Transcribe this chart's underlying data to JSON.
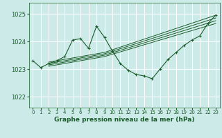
{
  "title": "Graphe pression niveau de la mer (hPa)",
  "bg_color": "#cceae7",
  "grid_color": "#ffffff",
  "line_color": "#1a5c2a",
  "ylabel_ticks": [
    1022,
    1023,
    1024,
    1025
  ],
  "xticks": [
    0,
    1,
    2,
    3,
    4,
    5,
    6,
    7,
    8,
    9,
    10,
    11,
    12,
    13,
    14,
    15,
    16,
    17,
    18,
    19,
    20,
    21,
    22,
    23
  ],
  "ylim": [
    1021.6,
    1025.4
  ],
  "xlim": [
    -0.5,
    23.5
  ],
  "main_line": {
    "x": [
      0,
      1,
      2,
      3,
      4,
      5,
      6,
      7,
      8,
      9,
      10,
      11,
      12,
      13,
      14,
      15,
      16,
      17,
      18,
      19,
      20,
      21,
      22,
      23
    ],
    "y": [
      1023.3,
      1023.05,
      1023.2,
      1023.3,
      1023.45,
      1024.05,
      1024.1,
      1023.75,
      1024.55,
      1024.15,
      1023.65,
      1023.2,
      1022.95,
      1022.8,
      1022.75,
      1022.65,
      1023.0,
      1023.35,
      1023.6,
      1023.85,
      1024.05,
      1024.2,
      1024.65,
      1024.95
    ]
  },
  "extra_lines": [
    {
      "x": [
        2,
        9,
        23
      ],
      "y": [
        1023.25,
        1023.6,
        1024.95
      ]
    },
    {
      "x": [
        2,
        9,
        23
      ],
      "y": [
        1023.2,
        1023.55,
        1024.85
      ]
    },
    {
      "x": [
        2,
        9,
        23
      ],
      "y": [
        1023.15,
        1023.5,
        1024.75
      ]
    },
    {
      "x": [
        2,
        9,
        23
      ],
      "y": [
        1023.1,
        1023.45,
        1024.65
      ]
    }
  ]
}
